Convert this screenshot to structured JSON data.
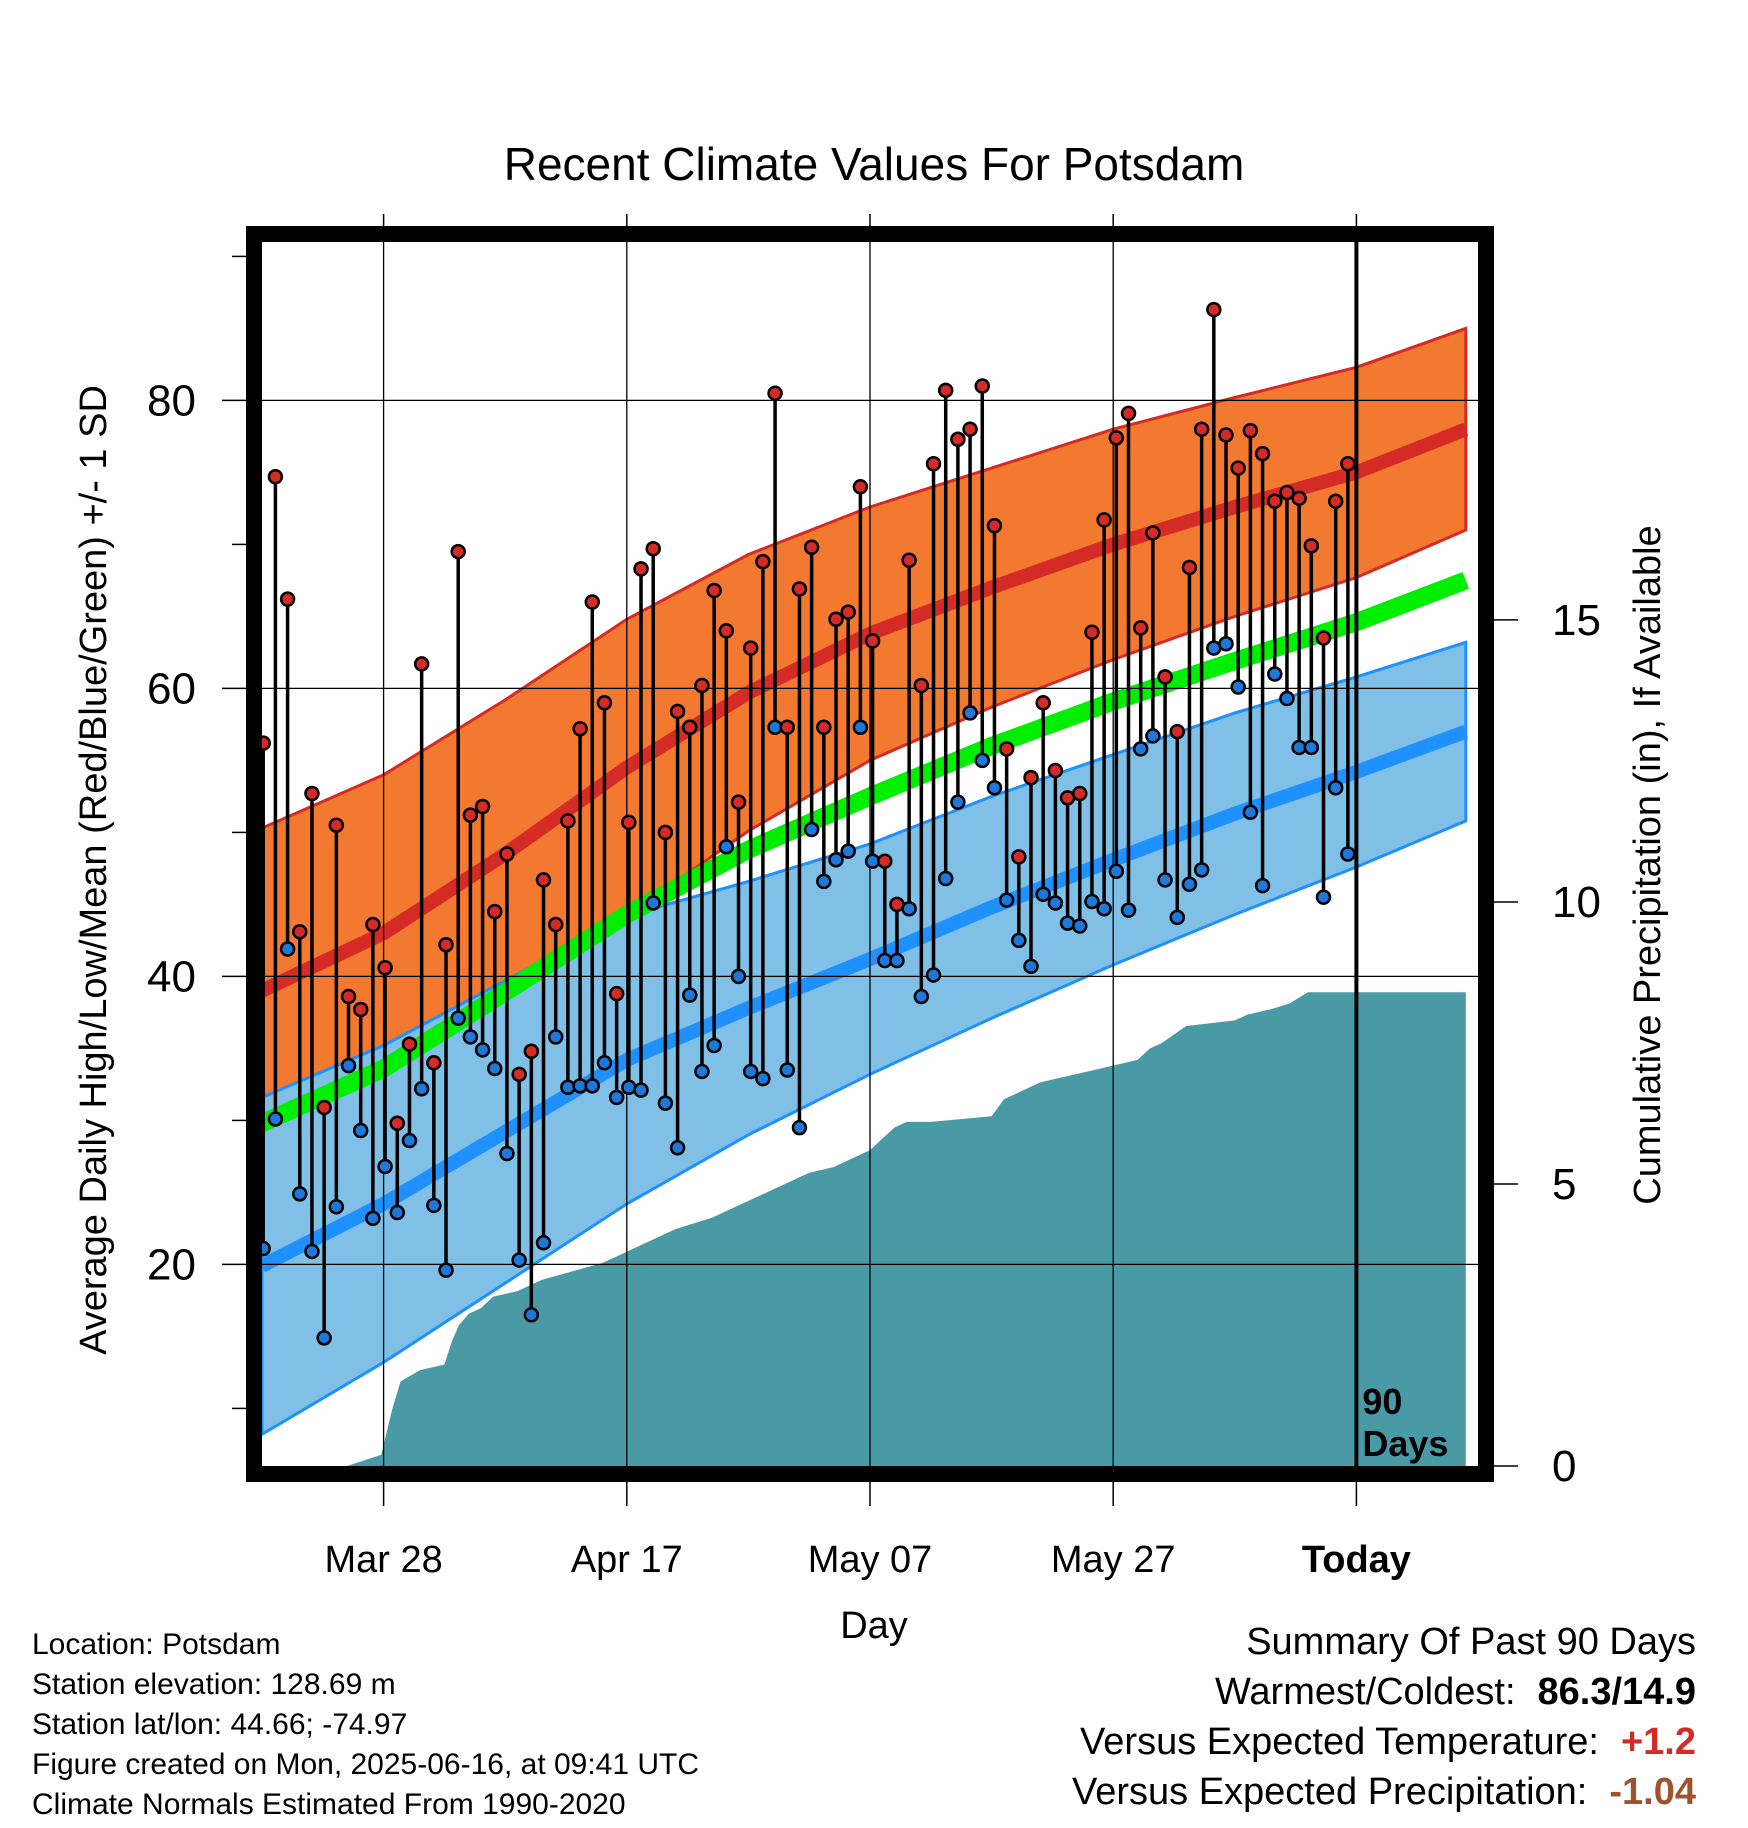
{
  "chart_data": {
    "type": "line",
    "title": "Recent Climate Values For Potsdam",
    "xlabel": "Day",
    "ylabel": "Average Daily High/Low/Mean (Red/Blue/Green) +/- 1 SD",
    "y2label": "Cumulative Precipitation (in), If Available",
    "ylim": [
      6,
      91
    ],
    "y2lim": [
      0,
      21.7
    ],
    "xlim": [
      0,
      100
    ],
    "x_tick_labels": [
      {
        "day": 10,
        "label": "Mar 28"
      },
      {
        "day": 30,
        "label": "Apr 17"
      },
      {
        "day": 50,
        "label": "May 07"
      },
      {
        "day": 70,
        "label": "May 27"
      },
      {
        "day": 90,
        "label": "Today"
      }
    ],
    "y_ticks": [
      20,
      40,
      60,
      80
    ],
    "y2_ticks": [
      0,
      5,
      10,
      15
    ],
    "grid": true,
    "today_day": 90,
    "today_label": "90 Days",
    "normal_high": {
      "x": [
        0,
        10,
        20,
        30,
        40,
        50,
        60,
        70,
        80,
        90,
        99
      ],
      "y": [
        39,
        43,
        48.5,
        54.5,
        59.7,
        63.8,
        67,
        70,
        72.6,
        75,
        78
      ],
      "sd": [
        11.3,
        11,
        10.7,
        10.3,
        9.6,
        8.8,
        8.3,
        8,
        7.6,
        7.3,
        7
      ]
    },
    "normal_low": {
      "x": [
        0,
        10,
        20,
        30,
        40,
        50,
        60,
        70,
        80,
        90,
        99
      ],
      "y": [
        19.9,
        24.2,
        29.2,
        34.2,
        37.8,
        41.2,
        44.8,
        48.1,
        51.3,
        54.2,
        57
      ],
      "sd": [
        11.7,
        11,
        10.5,
        10,
        8.8,
        8,
        7.7,
        7.3,
        7,
        6.6,
        6.2
      ]
    },
    "normal_mean": {
      "x": [
        0,
        10,
        20,
        30,
        40,
        50,
        60,
        70,
        80,
        90,
        99
      ],
      "y": [
        29.8,
        33.6,
        38.9,
        44.3,
        48.8,
        52.5,
        56,
        59.1,
        61.9,
        64.6,
        67.5
      ]
    },
    "daily": {
      "highs": [
        56.2,
        74.7,
        66.2,
        43.1,
        52.7,
        30.9,
        50.5,
        38.6,
        37.7,
        43.6,
        40.6,
        29.8,
        35.3,
        61.7,
        34.0,
        42.2,
        69.5,
        51.2,
        51.8,
        44.5,
        48.5,
        33.2,
        34.8,
        46.7,
        43.6,
        50.8,
        57.2,
        66.0,
        59.0,
        38.8,
        50.7,
        68.3,
        69.7,
        50.0,
        58.4,
        57.3,
        60.2,
        66.8,
        64.0,
        52.1,
        62.8,
        68.8,
        80.5,
        57.3,
        66.9,
        69.8,
        57.3,
        64.8,
        65.3,
        74.0,
        63.3,
        48.0,
        45.0,
        68.9,
        60.2,
        75.6,
        80.7,
        77.3,
        78.0,
        81.0,
        71.3,
        55.8,
        48.3,
        53.8,
        59.0,
        54.3,
        52.4,
        52.7,
        63.9,
        71.7,
        77.4,
        79.1,
        64.2,
        70.8,
        60.8,
        57.0,
        68.4,
        78.0,
        86.3,
        77.6,
        75.3,
        77.9,
        76.3,
        73.0,
        73.6,
        73.2,
        69.9,
        63.5,
        73.0,
        75.6
      ],
      "lows": [
        21.1,
        30.1,
        41.9,
        24.9,
        20.9,
        14.9,
        24.0,
        33.8,
        29.3,
        23.2,
        26.8,
        23.6,
        28.6,
        32.2,
        24.1,
        19.6,
        37.1,
        35.8,
        34.9,
        33.6,
        27.7,
        20.3,
        16.5,
        21.5,
        35.8,
        32.3,
        32.4,
        32.4,
        34.0,
        31.6,
        32.3,
        32.1,
        45.1,
        31.2,
        28.1,
        38.7,
        33.4,
        35.2,
        49.0,
        40.0,
        33.4,
        32.9,
        57.3,
        33.5,
        29.5,
        50.2,
        46.6,
        48.1,
        48.7,
        57.3,
        48.0,
        41.1,
        41.1,
        44.7,
        38.6,
        40.1,
        46.8,
        52.1,
        58.3,
        55.0,
        53.1,
        45.3,
        42.5,
        40.7,
        45.7,
        45.1,
        43.7,
        43.5,
        45.2,
        44.7,
        47.3,
        44.6,
        55.8,
        56.7,
        46.7,
        44.1,
        46.4,
        47.4,
        62.8,
        63.1,
        60.1,
        51.4,
        46.3,
        61.0,
        59.3,
        55.9,
        55.9,
        45.5,
        53.1,
        48.5
      ]
    },
    "cumulative_precip": {
      "x": [
        0,
        7,
        9.8,
        10.7,
        11.4,
        13,
        15,
        15.6,
        16.2,
        17,
        18,
        19,
        21,
        22,
        23,
        28,
        30,
        34,
        37,
        39,
        41,
        43,
        45,
        47,
        48,
        50,
        51,
        52,
        53,
        55,
        60,
        61,
        62,
        64,
        66,
        68,
        70,
        72,
        73,
        74,
        76,
        80,
        81,
        83,
        84.5,
        86,
        90,
        99
      ],
      "y": [
        0,
        0,
        0.2,
        1.0,
        1.5,
        1.7,
        1.8,
        2.2,
        2.5,
        2.7,
        2.8,
        3.0,
        3.1,
        3.2,
        3.3,
        3.6,
        3.8,
        4.2,
        4.4,
        4.6,
        4.8,
        5.0,
        5.2,
        5.3,
        5.4,
        5.6,
        5.8,
        6.0,
        6.1,
        6.1,
        6.2,
        6.5,
        6.6,
        6.8,
        6.9,
        7.0,
        7.1,
        7.2,
        7.4,
        7.5,
        7.8,
        7.9,
        8.0,
        8.1,
        8.2,
        8.4,
        8.4,
        8.4
      ]
    }
  },
  "info": {
    "location": "Location: Potsdam",
    "elevation": "Station elevation: 128.69 m",
    "latlon": "Station lat/lon: 44.66; -74.97",
    "created": "Figure created on Mon, 2025-06-16, at 09:41 UTC",
    "normals": "Climate Normals Estimated From 1990-2020"
  },
  "summary": {
    "heading": "Summary Of Past 90 Days",
    "warmest_label": "Warmest/Coldest:",
    "warmest_value": "86.3/14.9",
    "temp_label": "Versus Expected Temperature:",
    "temp_value": "+1.2",
    "precip_label": "Versus Expected Precipitation:",
    "precip_value": "-1.04"
  },
  "colors": {
    "high_band": "#f2792f",
    "high_line": "#d42b26",
    "low_band": "#80bfe6",
    "low_line": "#1e90ff",
    "mean_line": "#00ee00",
    "precip_fill": "#4a9aa6",
    "high_dot": "#d42b26",
    "low_dot": "#1e78d8",
    "temp_value": "#d42b26",
    "precip_value": "#a0522d"
  }
}
